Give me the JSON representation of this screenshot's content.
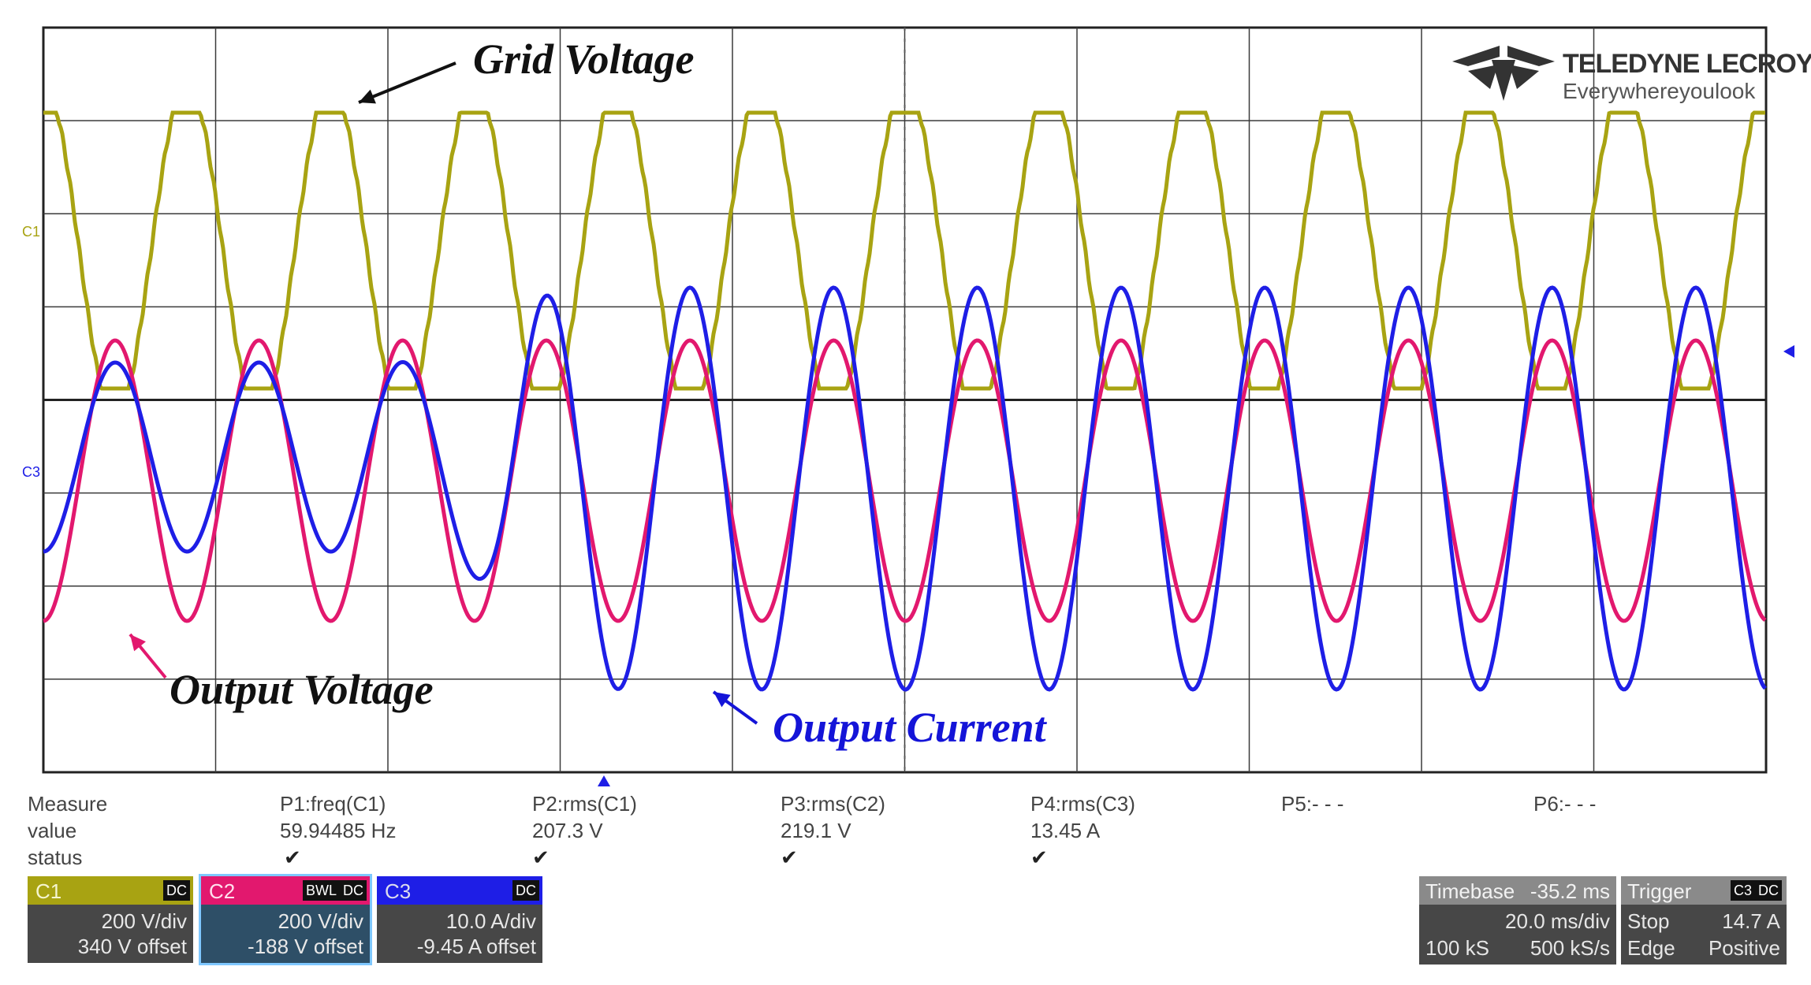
{
  "colors": {
    "c1": "#a8a312",
    "c2": "#e2186e",
    "c3": "#1e1ee6",
    "grid": "#3a3a3a",
    "panel": "#474747"
  },
  "annotations": {
    "grid_voltage": "Grid Voltage",
    "output_voltage": "Output Voltage",
    "output_current": "Output Current"
  },
  "logo": {
    "name": "TELEDYNE LECROY",
    "tagline": "Everywhereyoulook"
  },
  "measure": {
    "headers": [
      "Measure",
      "P1:freq(C1)",
      "P2:rms(C1)",
      "P3:rms(C2)",
      "P4:rms(C3)",
      "P5:- - -",
      "P6:- - -"
    ],
    "value_label": "value",
    "values": [
      "59.94485 Hz",
      "207.3 V",
      "219.1 V",
      "13.45 A",
      "",
      ""
    ],
    "status_label": "status",
    "status": [
      "✔",
      "✔",
      "✔",
      "✔",
      "",
      ""
    ]
  },
  "channels": [
    {
      "name": "C1",
      "coupling": "DC",
      "scale": "200 V/div",
      "offset": "340 V offset",
      "color": "#a8a312"
    },
    {
      "name": "C2",
      "bw": "BWL",
      "coupling": "DC",
      "scale": "200 V/div",
      "offset": "-188 V offset",
      "color": "#e2186e"
    },
    {
      "name": "C3",
      "coupling": "DC",
      "scale": "10.0 A/div",
      "offset": "-9.45 A offset",
      "color": "#1e1ee6"
    }
  ],
  "timebase": {
    "label": "Timebase",
    "delay": "-35.2 ms",
    "per_div": "20.0 ms/div",
    "samples": "100 kS",
    "rate": "500 kS/s"
  },
  "trigger": {
    "label": "Trigger",
    "source": "C3",
    "coupling": "DC",
    "mode": "Stop",
    "level": "14.7 A",
    "type": "Edge",
    "slope": "Positive"
  },
  "screen": {
    "divisions_x": 10,
    "divisions_y": 8,
    "time_per_div_ms": 20,
    "signal_frequency_hz": 59.94485,
    "channel_markers": [
      "C1",
      "C3"
    ]
  }
}
